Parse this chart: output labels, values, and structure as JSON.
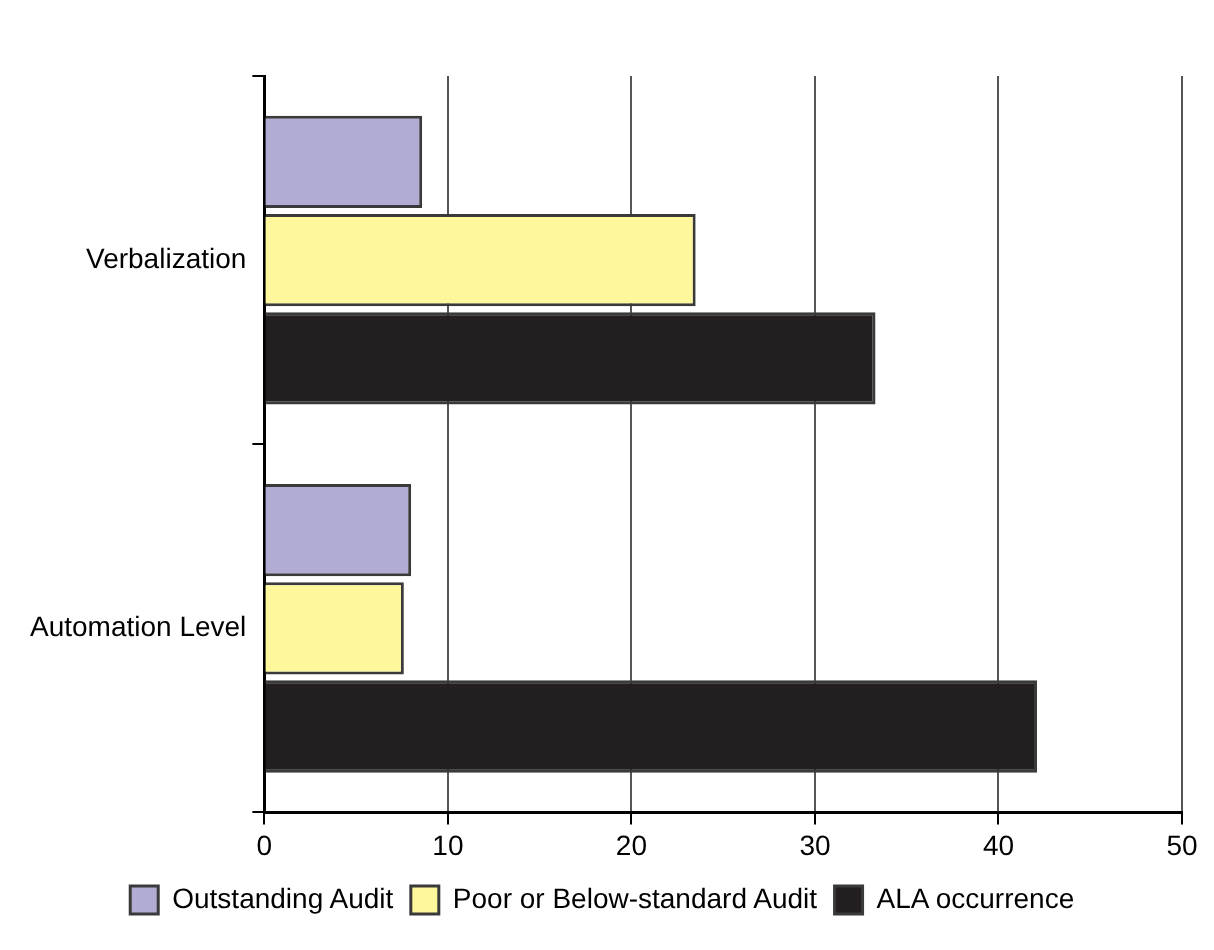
{
  "chart_data": {
    "type": "bar",
    "orientation": "horizontal",
    "categories": [
      "Verbalization",
      "Automation Level"
    ],
    "series": [
      {
        "name": "Outstanding Audit",
        "color": "#b0acd4",
        "values": [
          8.6,
          8.0
        ]
      },
      {
        "name": "Poor or Below-standard Audit",
        "color": "#fef79c",
        "values": [
          23.5,
          7.6
        ]
      },
      {
        "name": "ALA occurrence",
        "color": "#231f20",
        "values": [
          33.3,
          42.1
        ]
      }
    ],
    "xlim": [
      0,
      50
    ],
    "xticks": [
      0,
      10,
      20,
      30,
      40,
      50
    ],
    "grid": "x",
    "legend": "bottom"
  }
}
